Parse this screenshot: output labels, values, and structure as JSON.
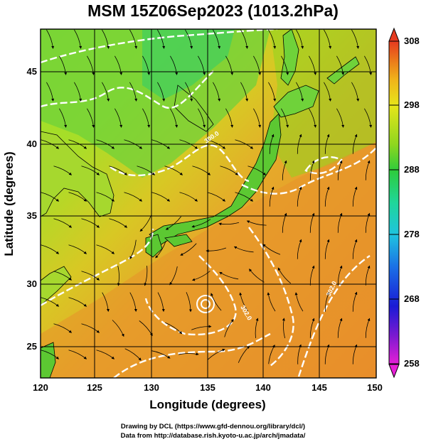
{
  "title": "MSM 15Z06Sep2023 (1013.2hPa)",
  "x_axis": {
    "label": "Longitude (degrees)",
    "ticks": [
      "120",
      "125",
      "130",
      "135",
      "140",
      "145",
      "150"
    ],
    "range": [
      120,
      150
    ]
  },
  "y_axis": {
    "label": "Latitude  (degrees)",
    "ticks": [
      "25",
      "30",
      "35",
      "40",
      "45"
    ],
    "range": [
      22.4,
      47.6
    ]
  },
  "colorbar": {
    "ticks": [
      "258",
      "268",
      "278",
      "288",
      "298",
      "308"
    ],
    "range": [
      258,
      308
    ],
    "colors": [
      "#e61fd6",
      "#7a1ad1",
      "#1a1ad6",
      "#1a6fe6",
      "#1fc3e0",
      "#1fd69a",
      "#2ecc3c",
      "#8ed61f",
      "#e6e61a",
      "#f0b41a",
      "#eb7a1a",
      "#e63a1f"
    ]
  },
  "contour_labels": [
    "300.0",
    "302.0",
    "302.0"
  ],
  "credits": {
    "line1": "Drawing by DCL (https://www.gfd-dennou.org/library/dcl/)",
    "line2": "Data from http://database.rish.kyoto-u.ac.jp/arch/jmadata/"
  },
  "colors": {
    "land_green": "#5cc832",
    "sea_orange": "#e8912a",
    "contour": "#ffffff",
    "coast": "#000000"
  }
}
